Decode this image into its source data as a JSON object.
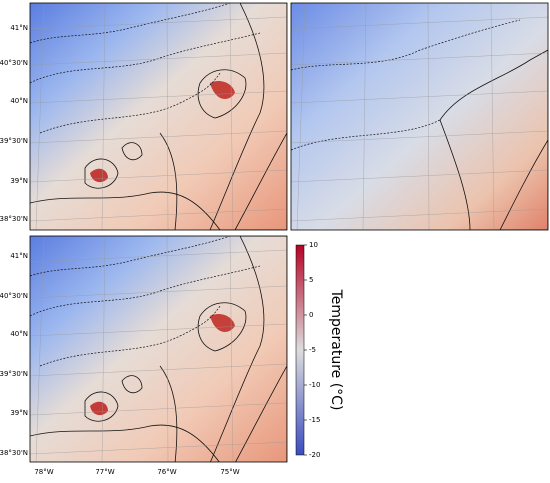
{
  "lat_labels": [
    "41°N",
    "40°30'N",
    "40°N",
    "39°30'N",
    "39°N",
    "38°30'N"
  ],
  "lon_labels": [
    "78°W",
    "77°W",
    "76°W",
    "75°W"
  ],
  "colorbar": {
    "label": "Temperature (°C)",
    "lim": [
      -20,
      10
    ],
    "ticks": [
      10,
      5,
      0,
      -5,
      -10,
      -15,
      -20
    ],
    "colors": [
      "#3b4cc0",
      "#dddddd",
      "#b40426"
    ]
  }
}
